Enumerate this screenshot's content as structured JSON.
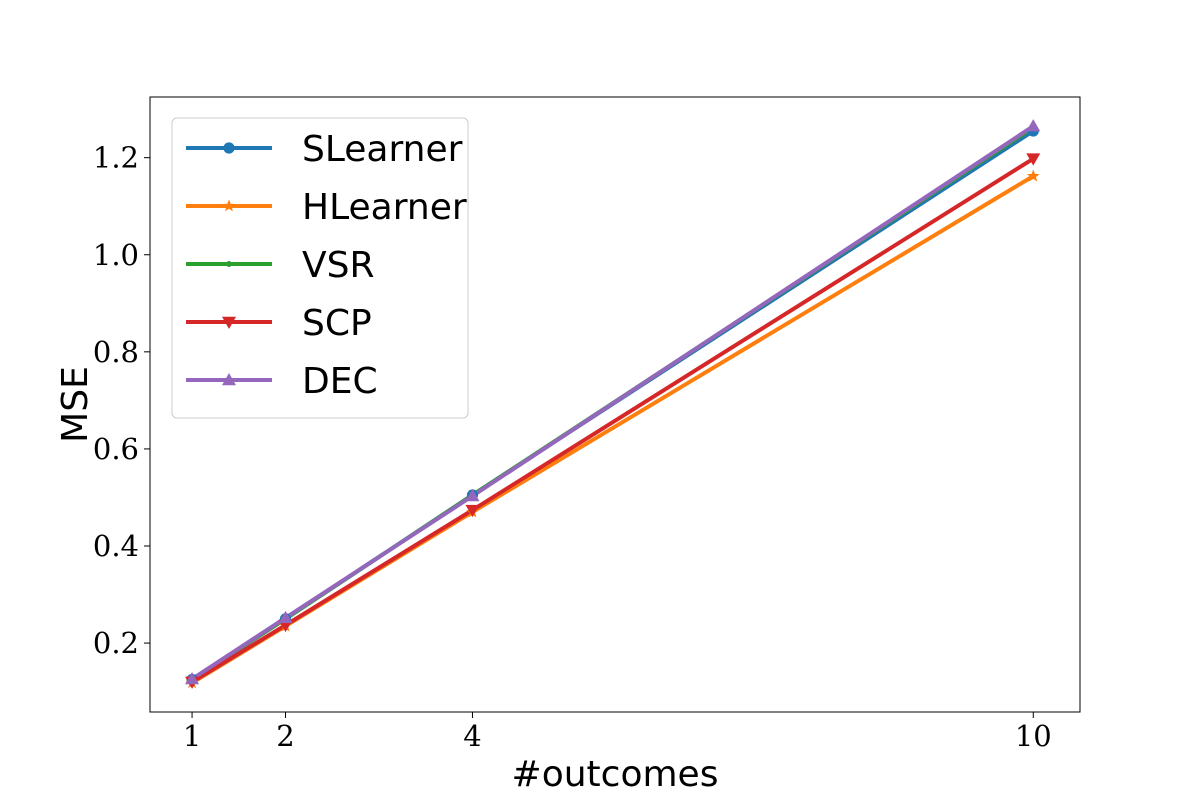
{
  "chart_data": {
    "type": "line",
    "title": "",
    "xlabel": "#outcomes",
    "ylabel": "MSE",
    "x": [
      1,
      2,
      4,
      10
    ],
    "xticks": [
      1,
      2,
      4,
      10
    ],
    "xtick_labels": [
      "1",
      "2",
      "4",
      "10"
    ],
    "yticks": [
      0.2,
      0.4,
      0.6,
      0.8,
      1.0,
      1.2
    ],
    "ytick_labels": [
      "0.2",
      "0.4",
      "0.6",
      "0.8",
      "1.0",
      "1.2"
    ],
    "xlim": [
      0.55,
      10.5
    ],
    "ylim": [
      0.058,
      1.325
    ],
    "grid": false,
    "legend_position": "top-left",
    "series": [
      {
        "name": "SLearner",
        "color": "#1f77b4",
        "marker": "circle",
        "values": [
          0.125,
          0.25,
          0.505,
          1.255
        ]
      },
      {
        "name": "HLearner",
        "color": "#ff7f0e",
        "marker": "star",
        "values": [
          0.118,
          0.235,
          0.47,
          1.162
        ]
      },
      {
        "name": "VSR",
        "color": "#2ca02c",
        "marker": "point",
        "values": [
          0.125,
          0.25,
          0.505,
          1.262
        ]
      },
      {
        "name": "SCP",
        "color": "#d62728",
        "marker": "triangle-down",
        "values": [
          0.12,
          0.237,
          0.474,
          1.198
        ]
      },
      {
        "name": "DEC",
        "color": "#9467bd",
        "marker": "triangle-up",
        "values": [
          0.126,
          0.252,
          0.503,
          1.265
        ]
      }
    ]
  }
}
